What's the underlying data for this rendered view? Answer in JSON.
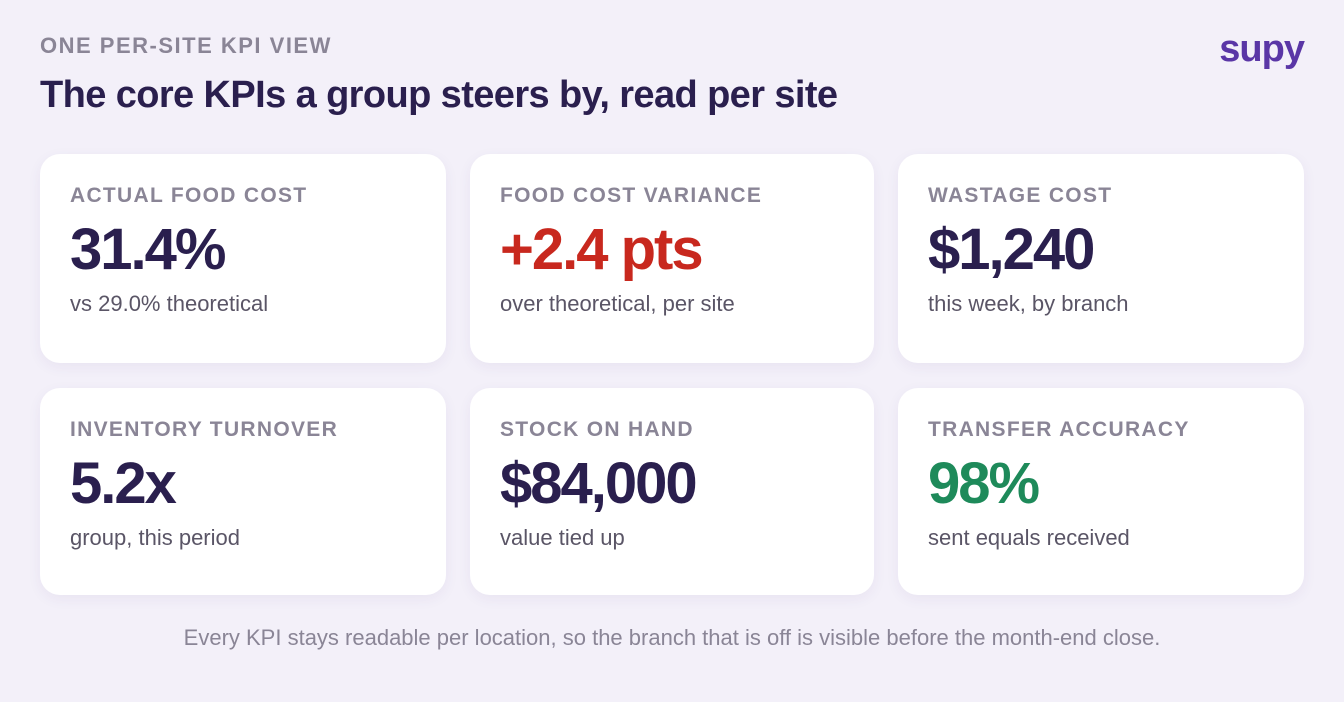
{
  "header": {
    "eyebrow": "ONE PER-SITE KPI VIEW",
    "title": "The core KPIs a group steers by, read per site",
    "logo": "supy"
  },
  "kpis": [
    {
      "label": "ACTUAL FOOD COST",
      "value": "31.4%",
      "sub": "vs 29.0% theoretical",
      "tone": "default"
    },
    {
      "label": "FOOD COST VARIANCE",
      "value": "+2.4 pts",
      "sub": "over theoretical, per site",
      "tone": "negative"
    },
    {
      "label": "WASTAGE COST",
      "value": "$1,240",
      "sub": "this week, by branch",
      "tone": "default"
    },
    {
      "label": "INVENTORY TURNOVER",
      "value": "5.2x",
      "sub": "group, this period",
      "tone": "default"
    },
    {
      "label": "STOCK ON HAND",
      "value": "$84,000",
      "sub": "value tied up",
      "tone": "default"
    },
    {
      "label": "TRANSFER ACCURACY",
      "value": "98%",
      "sub": "sent equals received",
      "tone": "positive"
    }
  ],
  "footer": {
    "note": "Every KPI stays readable per location, so the branch that is off is visible before the month-end close."
  },
  "colors": {
    "background": "#f3f0f9",
    "title": "#2a1f4e",
    "brand": "#5a36a6",
    "negative": "#c8281e",
    "positive": "#1e8a5a"
  }
}
